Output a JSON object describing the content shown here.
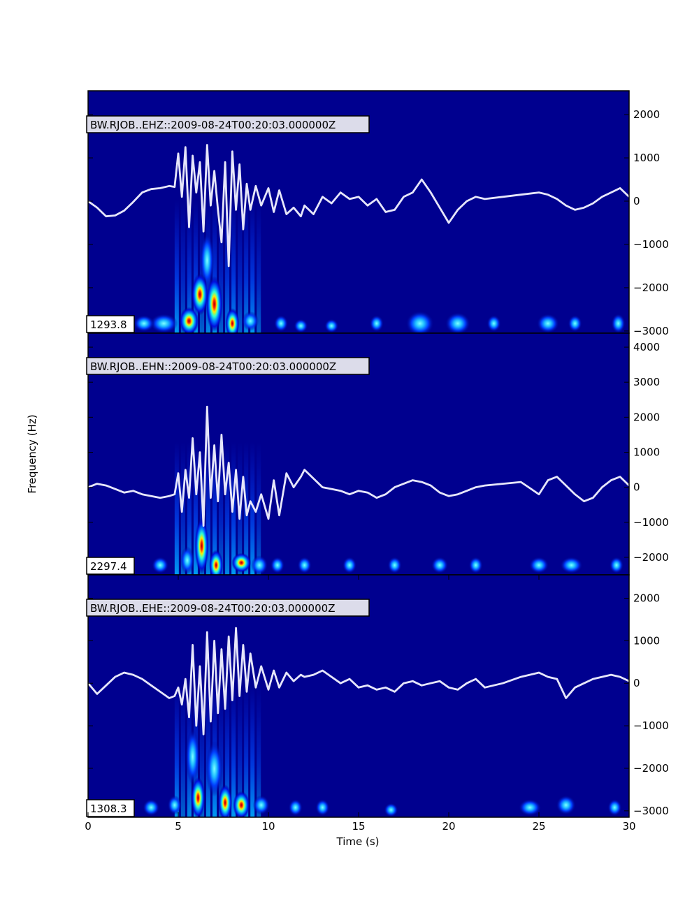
{
  "figure": {
    "ylabel": "Frequency (Hz)",
    "xlabel": "Time (s)",
    "x_ticks": [
      "0",
      "5",
      "10",
      "15",
      "20",
      "25",
      "30"
    ]
  },
  "colors": {
    "background": "#00008f",
    "trace": "#e6e6fa"
  },
  "chart_data": [
    {
      "type": "line",
      "title": "BW.RJOB..EHZ::2009-08-24T00:20:03.000000Z",
      "max_label": "1293.8",
      "xlim": [
        0,
        30
      ],
      "ylim": [
        -3050,
        2550
      ],
      "y_ticks": [
        "2000",
        "1000",
        "0",
        "−1000",
        "−2000",
        "−3000"
      ],
      "y_tick_values": [
        2000,
        1000,
        0,
        -1000,
        -2000,
        -3000
      ],
      "series": [
        {
          "x": [
            0,
            0.5,
            1,
            1.5,
            2,
            2.5,
            3,
            3.5,
            4,
            4.5,
            4.8,
            5,
            5.2,
            5.4,
            5.6,
            5.8,
            6,
            6.2,
            6.4,
            6.6,
            6.8,
            7,
            7.2,
            7.4,
            7.6,
            7.8,
            8,
            8.2,
            8.4,
            8.6,
            8.8,
            9,
            9.3,
            9.6,
            10,
            10.3,
            10.6,
            11,
            11.4,
            11.8,
            12,
            12.5,
            13,
            13.5,
            14,
            14.5,
            15,
            15.5,
            16,
            16.5,
            17,
            17.5,
            18,
            18.5,
            19,
            19.5,
            20,
            20.5,
            21,
            21.5,
            22,
            23,
            24,
            25,
            25.5,
            26,
            26.5,
            27,
            27.5,
            28,
            28.5,
            29,
            29.5,
            30
          ],
          "y": [
            0,
            -150,
            -350,
            -330,
            -220,
            -20,
            200,
            280,
            300,
            350,
            330,
            1100,
            100,
            1250,
            -600,
            1050,
            200,
            900,
            -700,
            1300,
            -100,
            700,
            -200,
            -950,
            900,
            -1500,
            1150,
            -200,
            850,
            -650,
            400,
            -200,
            350,
            -100,
            300,
            -250,
            250,
            -300,
            -150,
            -350,
            -100,
            -300,
            100,
            -50,
            200,
            50,
            100,
            -100,
            50,
            -250,
            -200,
            100,
            200,
            500,
            200,
            -150,
            -500,
            -200,
            0,
            100,
            50,
            100,
            150,
            200,
            150,
            50,
            -100,
            -200,
            -150,
            -50,
            100,
            200,
            300,
            100
          ]
        }
      ]
    },
    {
      "type": "line",
      "title": "BW.RJOB..EHN::2009-08-24T00:20:03.000000Z",
      "max_label": "2297.4",
      "xlim": [
        0,
        30
      ],
      "ylim": [
        -2500,
        4400
      ],
      "y_ticks": [
        "4000",
        "3000",
        "2000",
        "1000",
        "0",
        "−1000",
        "−2000"
      ],
      "y_tick_values": [
        4000,
        3000,
        2000,
        1000,
        0,
        -1000,
        -2000
      ],
      "series": [
        {
          "x": [
            0,
            0.5,
            1,
            1.5,
            2,
            2.5,
            3,
            3.5,
            4,
            4.5,
            4.8,
            5,
            5.2,
            5.4,
            5.6,
            5.8,
            6,
            6.2,
            6.4,
            6.6,
            6.8,
            7,
            7.2,
            7.4,
            7.6,
            7.8,
            8,
            8.2,
            8.4,
            8.6,
            8.8,
            9,
            9.3,
            9.6,
            10,
            10.3,
            10.6,
            11,
            11.4,
            11.8,
            12,
            12.5,
            13,
            13.5,
            14,
            14.5,
            15,
            15.5,
            16,
            16.5,
            17,
            17.5,
            18,
            18.5,
            19,
            19.5,
            20,
            20.5,
            21,
            21.5,
            22,
            23,
            24,
            25,
            25.5,
            26,
            26.5,
            27,
            27.5,
            28,
            28.5,
            29,
            29.5,
            30
          ],
          "y": [
            0,
            100,
            50,
            -50,
            -150,
            -100,
            -200,
            -250,
            -300,
            -250,
            -200,
            400,
            -700,
            500,
            -300,
            1400,
            -200,
            1000,
            -1100,
            2300,
            -300,
            1200,
            -400,
            1500,
            -200,
            700,
            -700,
            500,
            -900,
            300,
            -800,
            -400,
            -700,
            -200,
            -900,
            200,
            -800,
            400,
            0,
            300,
            500,
            250,
            0,
            -50,
            -100,
            -200,
            -100,
            -150,
            -300,
            -200,
            0,
            100,
            200,
            150,
            50,
            -150,
            -250,
            -200,
            -100,
            0,
            50,
            100,
            150,
            -200,
            200,
            300,
            50,
            -200,
            -400,
            -300,
            0,
            200,
            300,
            50
          ]
        }
      ]
    },
    {
      "type": "line",
      "title": "BW.RJOB..EHE::2009-08-24T00:20:03.000000Z",
      "max_label": "1308.3",
      "xlim": [
        0,
        30
      ],
      "ylim": [
        -3150,
        2550
      ],
      "y_ticks": [
        "2000",
        "1000",
        "0",
        "−1000",
        "−2000",
        "−3000"
      ],
      "y_tick_values": [
        2000,
        1000,
        0,
        -1000,
        -2000,
        -3000
      ],
      "series": [
        {
          "x": [
            0,
            0.5,
            1,
            1.5,
            2,
            2.5,
            3,
            3.5,
            4,
            4.5,
            4.8,
            5,
            5.2,
            5.4,
            5.6,
            5.8,
            6,
            6.2,
            6.4,
            6.6,
            6.8,
            7,
            7.2,
            7.4,
            7.6,
            7.8,
            8,
            8.2,
            8.4,
            8.6,
            8.8,
            9,
            9.3,
            9.6,
            10,
            10.3,
            10.6,
            11,
            11.4,
            11.8,
            12,
            12.5,
            13,
            13.5,
            14,
            14.5,
            15,
            15.5,
            16,
            16.5,
            17,
            17.5,
            18,
            18.5,
            19,
            19.5,
            20,
            20.5,
            21,
            21.5,
            22,
            23,
            24,
            25,
            25.5,
            26,
            26.5,
            27,
            27.5,
            28,
            28.5,
            29,
            29.5,
            30
          ],
          "y": [
            0,
            -250,
            -50,
            150,
            250,
            200,
            100,
            -50,
            -200,
            -350,
            -300,
            -100,
            -500,
            100,
            -800,
            900,
            -1000,
            400,
            -1200,
            1200,
            -900,
            1000,
            -700,
            800,
            -600,
            1100,
            -400,
            1300,
            -300,
            900,
            -200,
            700,
            -100,
            400,
            -150,
            300,
            -100,
            250,
            50,
            200,
            150,
            200,
            300,
            150,
            0,
            100,
            -100,
            -50,
            -150,
            -100,
            -200,
            0,
            50,
            -50,
            0,
            50,
            -100,
            -150,
            0,
            100,
            -100,
            0,
            150,
            250,
            150,
            100,
            -350,
            -100,
            0,
            100,
            150,
            200,
            150,
            50
          ]
        }
      ]
    }
  ]
}
